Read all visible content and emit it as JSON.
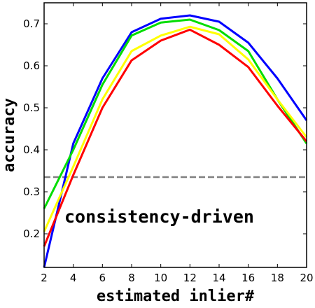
{
  "chart_data": {
    "type": "line",
    "xlabel": "estimated inlier#",
    "ylabel": "accuracy",
    "annotation": "consistency-driven",
    "x": [
      2,
      4,
      6,
      8,
      10,
      12,
      14,
      16,
      18,
      20
    ],
    "xlim": [
      2,
      20
    ],
    "ylim": [
      0.12,
      0.75
    ],
    "xticks": [
      2,
      4,
      6,
      8,
      10,
      12,
      14,
      16,
      18,
      20
    ],
    "yticks": [
      0.2,
      0.3,
      0.4,
      0.5,
      0.6,
      0.7
    ],
    "grid": false,
    "baseline": {
      "y": 0.335,
      "color": "#808080",
      "style": "dashed"
    },
    "series": [
      {
        "color": "#0000ff",
        "values": [
          0.12,
          0.415,
          0.57,
          0.68,
          0.712,
          0.72,
          0.705,
          0.655,
          0.57,
          0.47
        ]
      },
      {
        "color": "#00dd00",
        "values": [
          0.26,
          0.4,
          0.555,
          0.672,
          0.703,
          0.71,
          0.685,
          0.635,
          0.52,
          0.415
        ]
      },
      {
        "color": "#ffff00",
        "values": [
          0.205,
          0.36,
          0.52,
          0.635,
          0.672,
          0.693,
          0.675,
          0.615,
          0.52,
          0.43
        ]
      },
      {
        "color": "#ff0000",
        "values": [
          0.17,
          0.34,
          0.5,
          0.613,
          0.66,
          0.686,
          0.65,
          0.597,
          0.505,
          0.42
        ]
      }
    ]
  }
}
